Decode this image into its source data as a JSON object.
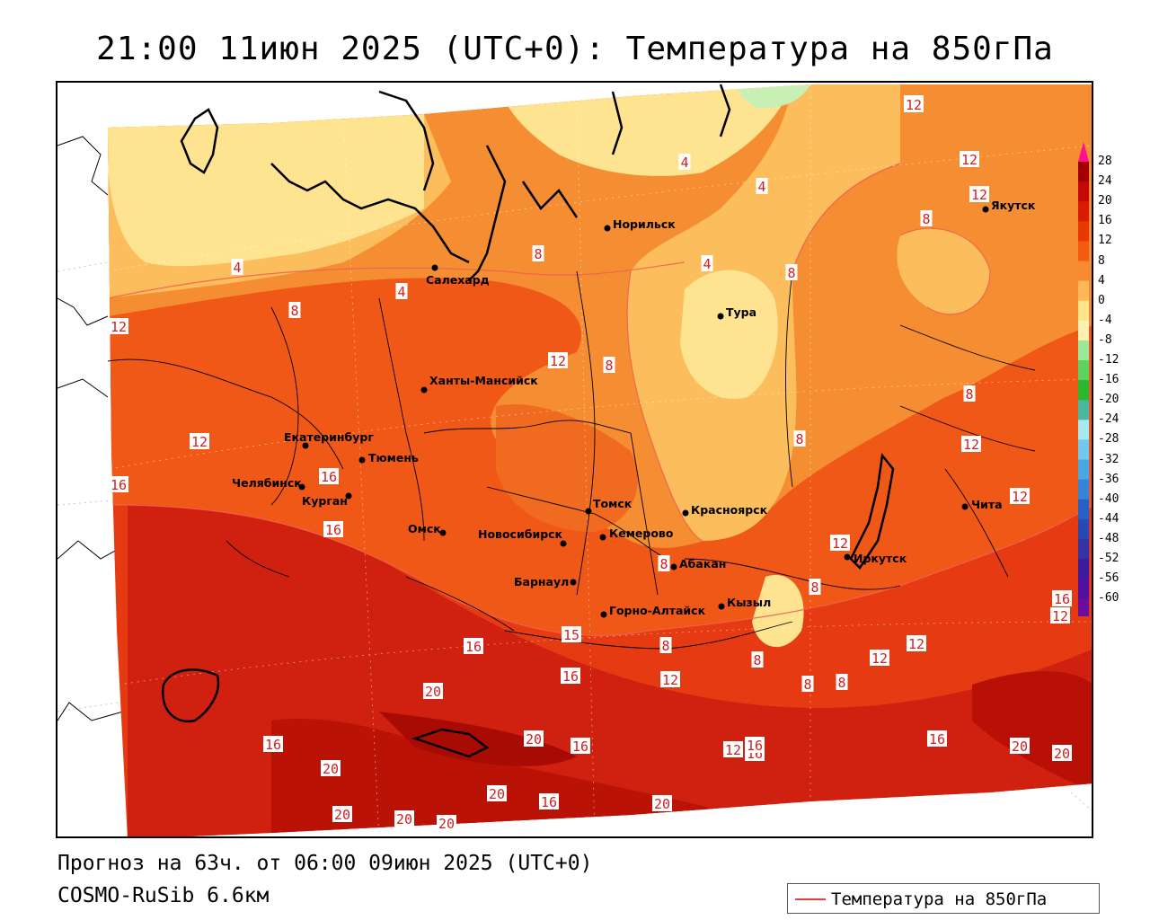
{
  "title": "21:00 11июн 2025 (UTC+0): Температура на 850гПа",
  "footer": {
    "forecast": "Прогноз на 63ч. от 06:00 09июн 2025 (UTC+0)",
    "model": "COSMO-RuSib 6.6км"
  },
  "key": {
    "label": "Температура на 850гПа",
    "line_color": "#e04040"
  },
  "legend": {
    "ticks": [
      "28",
      "24",
      "20",
      "16",
      "12",
      "8",
      "4",
      "0",
      "-4",
      "-8",
      "-12",
      "-16",
      "-20",
      "-24",
      "-28",
      "-32",
      "-36",
      "-40",
      "-44",
      "-48",
      "-52",
      "-56",
      "-60"
    ],
    "colors": [
      "#a40000",
      "#c40a00",
      "#d81c00",
      "#e83800",
      "#f45a10",
      "#f88a30",
      "#fcb858",
      "#fde68a",
      "#fdf0b0",
      "#9be89b",
      "#5ed25e",
      "#2cb82c",
      "#48b8a0",
      "#a8e8f0",
      "#74c8ec",
      "#48a8e4",
      "#3484d8",
      "#2660c8",
      "#2848b4",
      "#3234a4",
      "#3a1c9c",
      "#5210a0",
      "#6a0c9c"
    ],
    "top_color": "#ff1090",
    "bottom_color": "#e01098"
  },
  "cities": [
    {
      "name": "Норильск"
    },
    {
      "name": "Салехард"
    },
    {
      "name": "Тура"
    },
    {
      "name": "Якутск"
    },
    {
      "name": "Ханты-Мансийск"
    },
    {
      "name": "Екатеринбург"
    },
    {
      "name": "Тюмень"
    },
    {
      "name": "Челябинск"
    },
    {
      "name": "Курган"
    },
    {
      "name": "Омск"
    },
    {
      "name": "Томск"
    },
    {
      "name": "Новосибирск"
    },
    {
      "name": "Кемерово"
    },
    {
      "name": "Красноярск"
    },
    {
      "name": "Абакан"
    },
    {
      "name": "Барнаул"
    },
    {
      "name": "Горно-Алтайск"
    },
    {
      "name": "Кызыл"
    },
    {
      "name": "Иркутск"
    },
    {
      "name": "Чита"
    }
  ],
  "contour_labels": [
    "12",
    "12",
    "4",
    "4",
    "12",
    "8",
    "8",
    "4",
    "4",
    "8",
    "4",
    "8",
    "12",
    "8",
    "12",
    "8",
    "8",
    "12",
    "12",
    "16",
    "16",
    "12",
    "12",
    "12",
    "16",
    "12",
    "8",
    "8",
    "15",
    "16",
    "20",
    "12",
    "8",
    "16",
    "12",
    "12",
    "8",
    "8",
    "8",
    "16",
    "20",
    "16",
    "20",
    "16",
    "12",
    "16",
    "20",
    "20",
    "20",
    "16",
    "20",
    "16",
    "20",
    "20",
    "20",
    "16"
  ]
}
